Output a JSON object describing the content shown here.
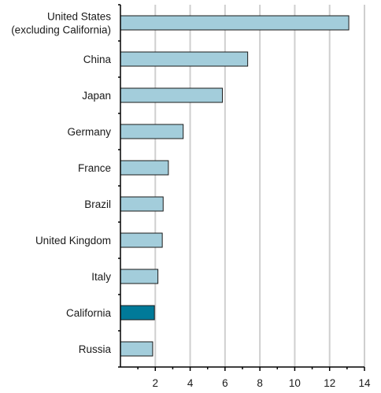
{
  "chart_data": {
    "type": "bar",
    "orientation": "horizontal",
    "title": "",
    "xlabel": "",
    "ylabel": "",
    "categories": [
      [
        "United States",
        "(excluding California)"
      ],
      [
        "China"
      ],
      [
        "Japan"
      ],
      [
        "Germany"
      ],
      [
        "France"
      ],
      [
        "Brazil"
      ],
      [
        "United Kingdom"
      ],
      [
        "Italy"
      ],
      [
        "California"
      ],
      [
        "Russia"
      ]
    ],
    "values": [
      13.1,
      7.3,
      5.85,
      3.6,
      2.75,
      2.45,
      2.4,
      2.15,
      1.95,
      1.85
    ],
    "highlight": "California",
    "xlim": [
      0,
      14
    ],
    "xticks": [
      2,
      4,
      6,
      8,
      10,
      12,
      14
    ],
    "grid": "vertical",
    "colors": {
      "bar": "#a3cddb",
      "highlight": "#007a99",
      "grid": "#cfcfcf",
      "axis": "#000000"
    }
  }
}
